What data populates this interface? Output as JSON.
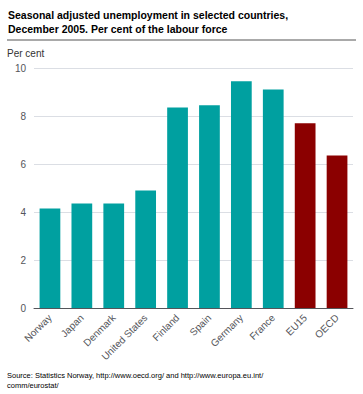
{
  "chart_data": {
    "type": "bar",
    "title": "Seasonal adjusted unemployment in selected countries,\nDecember 2005. Per cent of the labour force",
    "ylabel": "Per cent",
    "categories": [
      "Norway",
      "Japan",
      "Denmark",
      "United States",
      "Finland",
      "Spain",
      "Germany",
      "France",
      "EU15",
      "OECD"
    ],
    "values": [
      4.15,
      4.35,
      4.35,
      4.9,
      8.35,
      8.45,
      9.45,
      9.1,
      7.7,
      6.35
    ],
    "colors": [
      "#00a0a0",
      "#00a0a0",
      "#00a0a0",
      "#00a0a0",
      "#00a0a0",
      "#00a0a0",
      "#00a0a0",
      "#00a0a0",
      "#8b0000",
      "#8b0000"
    ],
    "ylim": [
      0,
      10
    ],
    "yticks": [
      0,
      2,
      4,
      6,
      8,
      10
    ],
    "grid": true,
    "annotations": [
      "Source: Statistics Norway, http://www.oecd.org/ and http://www.europa.eu.int/\ncomm/eurostat/"
    ]
  }
}
